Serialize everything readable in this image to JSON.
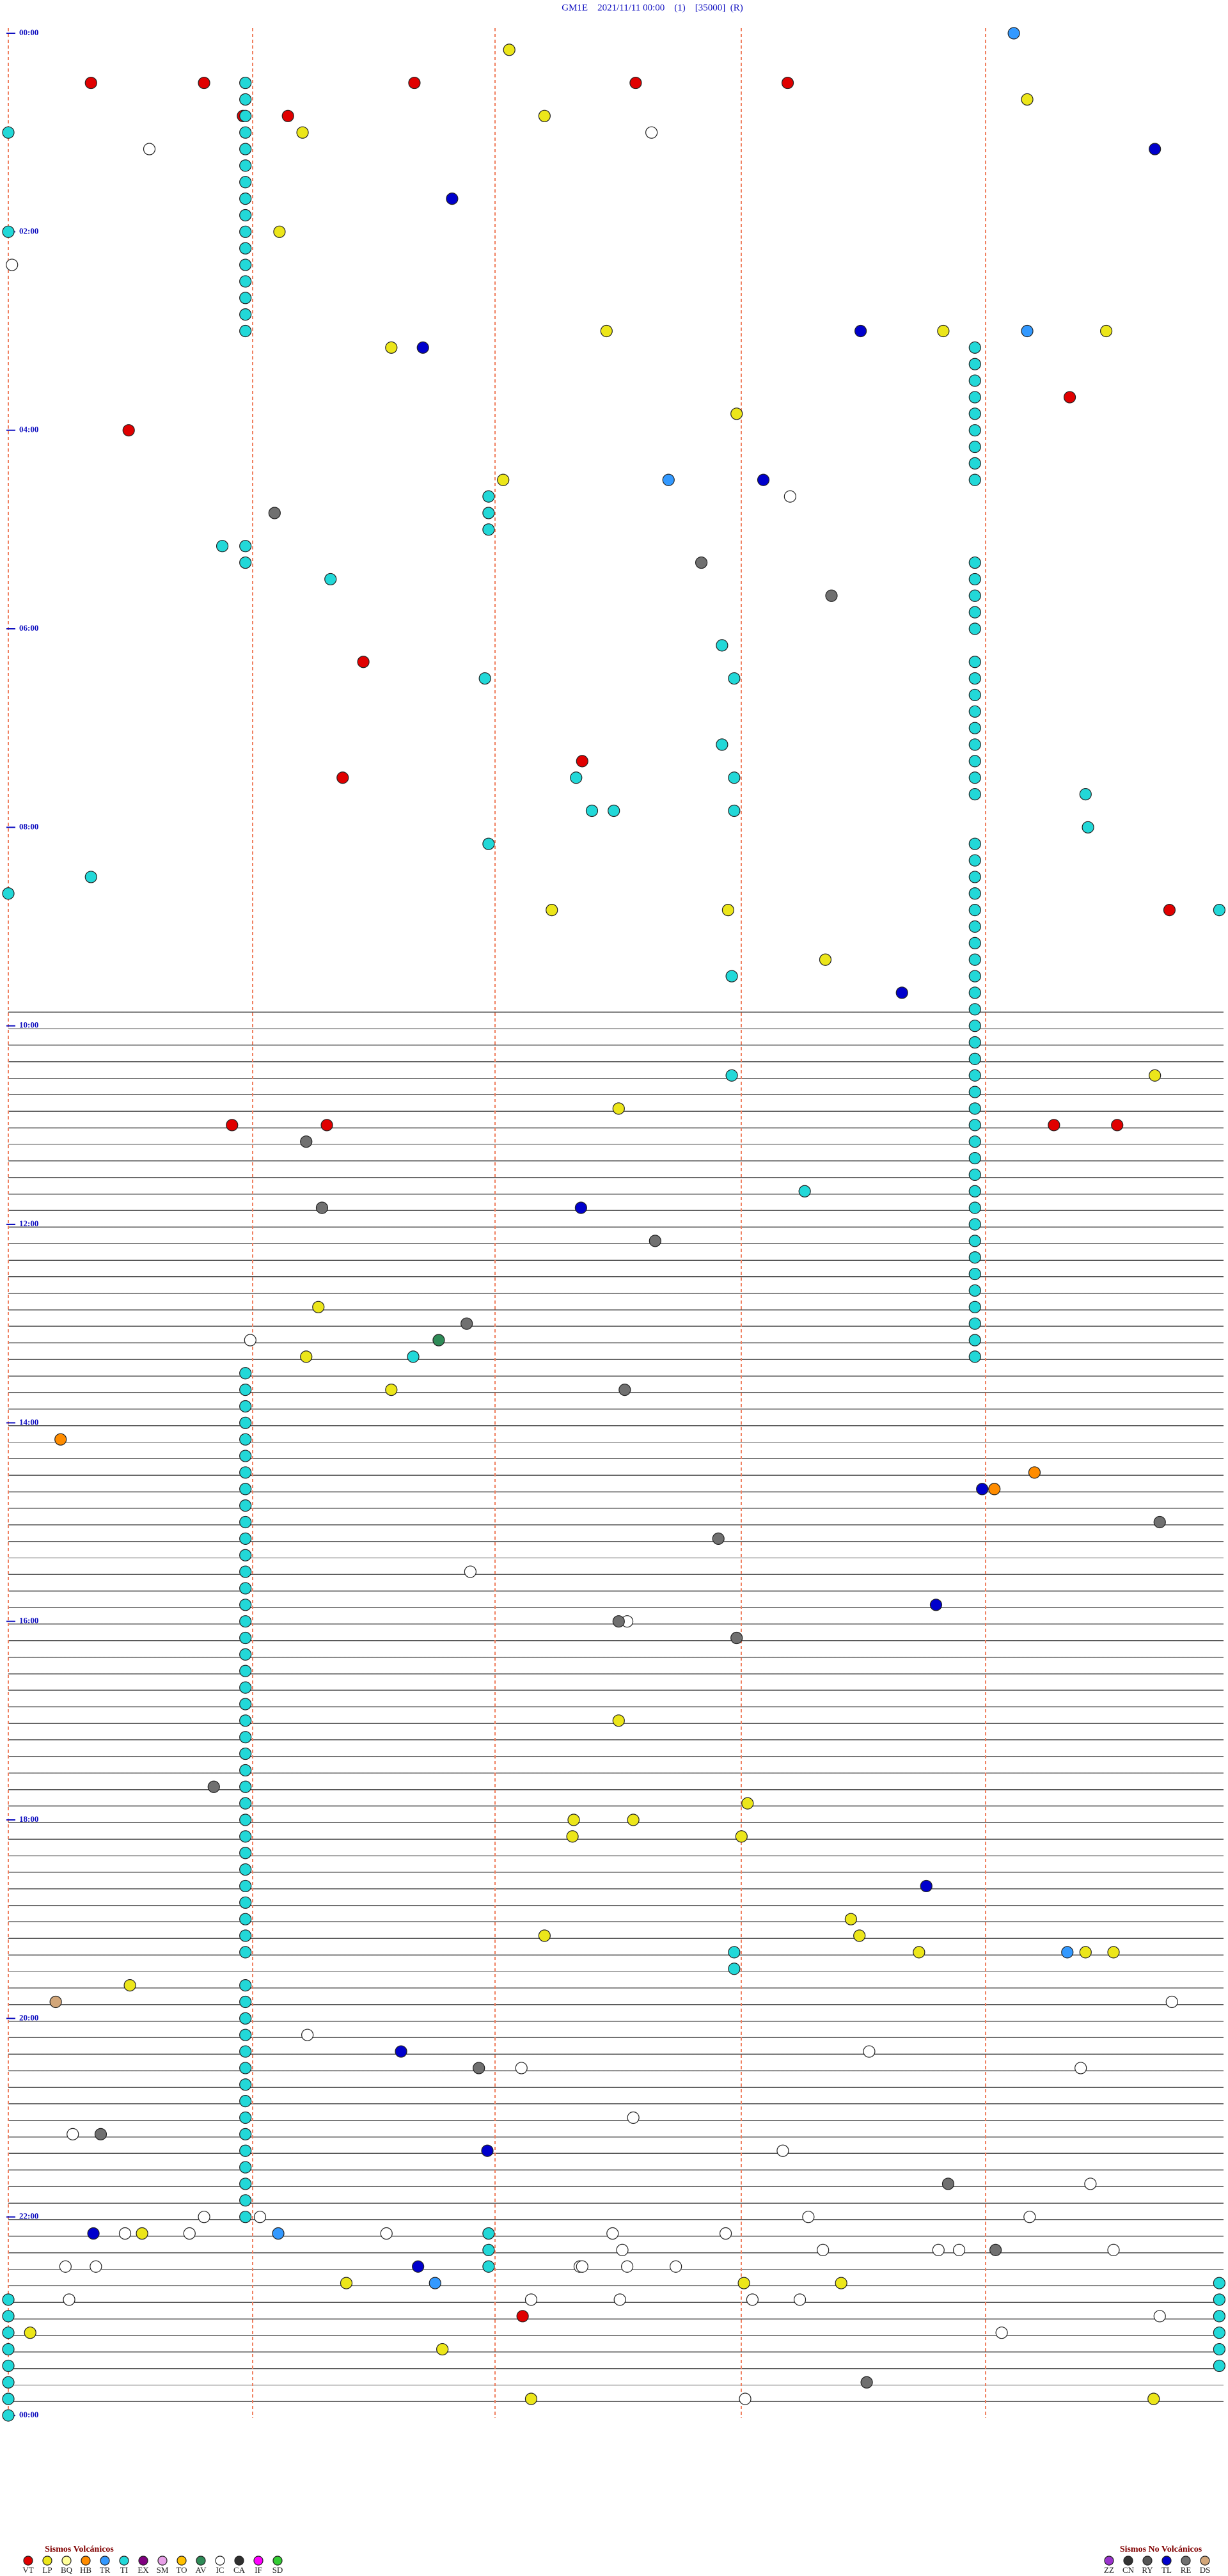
{
  "chart_data": {
    "type": "scatter",
    "title": "GM1E    2021/11/11 00:00    (1)    [35000]  (R)",
    "xlim": [
      0,
      10
    ],
    "ylim": [
      0,
      1440
    ],
    "yticks": [
      {
        "value": 0,
        "label": "00:00"
      },
      {
        "value": 120,
        "label": "02:00"
      },
      {
        "value": 240,
        "label": "04:00"
      },
      {
        "value": 360,
        "label": "06:00"
      },
      {
        "value": 480,
        "label": "08:00"
      },
      {
        "value": 600,
        "label": "10:00"
      },
      {
        "value": 720,
        "label": "12:00"
      },
      {
        "value": 840,
        "label": "14:00"
      },
      {
        "value": 960,
        "label": "16:00"
      },
      {
        "value": 1080,
        "label": "18:00"
      },
      {
        "value": 1200,
        "label": "20:00"
      },
      {
        "value": 1320,
        "label": "22:00"
      },
      {
        "value": 1440,
        "label": "00:00"
      }
    ],
    "series_groups": [
      {
        "title": "Sismos Volcánicos",
        "series": [
          {
            "name": "VT",
            "color": "#e00000",
            "x": [
              0.68,
              1.61,
              3.34,
              5.16,
              6.41,
              2.3,
              1.93,
              0.99,
              8.73,
              2.92,
              4.72,
              2.75,
              9.55,
              1.84,
              2.62,
              8.6,
              9.12,
              4.23
            ],
            "values": [
              30,
              30,
              30,
              30,
              30,
              50,
              50,
              240,
              220,
              380,
              440,
              450,
              530,
              660,
              660,
              660,
              660,
              1380
            ]
          },
          {
            "name": "LP",
            "color": "#ece61a",
            "x": [
              4.12,
              4.41,
              2.42,
              8.38,
              2.23,
              3.15,
              4.92,
              7.69,
              9.03,
              5.99,
              4.07,
              4.47,
              5.92,
              6.72,
              9.43,
              5.02,
              2.55,
              2.45,
              3.15,
              5.02,
              6.08,
              4.65,
              5.14,
              4.64,
              6.03,
              6.93,
              7.0,
              4.41,
              7.49,
              8.86,
              9.09,
              1.0,
              1.1,
              2.78,
              6.05,
              6.85,
              0.18,
              3.57,
              9.42,
              4.3
            ],
            "values": [
              10,
              50,
              60,
              40,
              120,
              190,
              180,
              180,
              180,
              230,
              270,
              530,
              530,
              560,
              630,
              650,
              770,
              800,
              820,
              1020,
              1070,
              1080,
              1080,
              1090,
              1090,
              1140,
              1150,
              1150,
              1160,
              1160,
              1160,
              1180,
              1330,
              1360,
              1360,
              1360,
              1390,
              1400,
              1430,
              1430
            ]
          },
          {
            "name": "BQ",
            "color": "#ffff99",
            "x": [],
            "values": []
          },
          {
            "name": "HB",
            "color": "#ff8c00",
            "x": [
              0.43,
              8.44,
              8.11
            ],
            "values": [
              850,
              870,
              880
            ]
          },
          {
            "name": "TR",
            "color": "#3399ff",
            "x": [
              8.27,
              5.43,
              8.38,
              8.71,
              2.22,
              3.51
            ],
            "values": [
              0,
              270,
              180,
              1160,
              1330,
              1360
            ]
          },
          {
            "name": "TI",
            "color": "#22d8d8",
            "x": [
              0,
              0,
              1.76,
              2.65,
              3.92,
              5.87,
              5.97,
              5.87,
              4.67,
              5.97,
              4.8,
              4.98,
              5.97,
              3.95,
              8.86,
              8.88,
              0.68,
              0,
              9.96,
              5.95,
              5.95,
              6.55,
              3.33,
              5.97,
              5.97,
              1.95,
              1.95,
              1.95,
              1.95,
              1.95,
              1.95,
              1.95,
              1.95,
              1.95,
              1.95,
              1.95,
              1.95,
              1.95,
              1.95,
              1.95,
              1.95,
              3.95,
              3.95,
              3.95,
              1.95,
              1.95,
              7.95,
              7.95,
              7.95,
              7.95,
              7.95,
              7.95,
              7.95,
              7.95,
              7.95,
              7.95,
              7.95,
              7.95,
              7.95,
              7.95,
              7.95,
              7.95,
              7.95,
              7.95,
              7.95,
              7.95,
              7.95,
              7.95,
              7.95,
              7.95,
              7.95,
              7.95,
              7.95,
              7.95,
              7.95,
              7.95,
              7.95,
              7.95,
              7.95,
              7.95,
              7.95,
              7.95,
              7.95,
              7.95,
              7.95,
              7.95,
              7.95,
              7.95,
              7.95,
              7.95,
              7.95,
              7.95,
              7.95,
              7.95,
              7.95,
              7.95,
              7.95,
              7.95,
              7.95,
              7.95,
              7.95,
              1.95,
              1.95,
              1.95,
              1.95,
              1.95,
              1.95,
              1.95,
              1.95,
              1.95,
              1.95,
              1.95,
              1.95,
              1.95,
              1.95,
              1.95,
              1.95,
              1.95,
              1.95,
              1.95,
              1.95,
              1.95,
              1.95,
              1.95,
              1.95,
              1.95,
              1.95,
              1.95,
              1.95,
              1.95,
              1.95,
              1.95,
              1.95,
              1.95,
              1.95,
              1.95,
              1.95,
              1.95,
              1.95,
              1.95,
              1.95,
              1.95,
              1.95,
              1.95,
              1.95,
              1.95,
              1.95,
              1.95,
              1.95,
              1.95,
              1.95,
              1.95,
              3.95,
              3.95,
              3.95,
              0,
              0,
              0,
              0,
              0,
              0,
              0,
              0,
              9.96,
              9.96,
              9.96,
              9.96,
              9.96,
              9.96
            ],
            "values": [
              60,
              120,
              310,
              330,
              390,
              370,
              390,
              430,
              450,
              450,
              470,
              470,
              470,
              490,
              460,
              480,
              510,
              520,
              530,
              570,
              630,
              700,
              800,
              1160,
              1170,
              30,
              40,
              50,
              60,
              70,
              80,
              90,
              100,
              110,
              120,
              130,
              140,
              150,
              160,
              170,
              180,
              280,
              290,
              300,
              310,
              320,
              190,
              200,
              210,
              220,
              230,
              240,
              250,
              260,
              270,
              320,
              330,
              340,
              350,
              360,
              380,
              390,
              400,
              410,
              420,
              430,
              440,
              450,
              460,
              490,
              500,
              510,
              520,
              530,
              540,
              550,
              560,
              570,
              580,
              590,
              600,
              610,
              620,
              630,
              640,
              650,
              660,
              670,
              680,
              690,
              700,
              710,
              720,
              730,
              740,
              750,
              760,
              770,
              780,
              790,
              800,
              810,
              820,
              830,
              840,
              850,
              860,
              870,
              880,
              890,
              900,
              910,
              920,
              930,
              940,
              950,
              960,
              970,
              980,
              990,
              1000,
              1010,
              1020,
              1030,
              1040,
              1050,
              1060,
              1070,
              1080,
              1090,
              1100,
              1110,
              1120,
              1130,
              1140,
              1150,
              1160,
              1180,
              1190,
              1200,
              1210,
              1220,
              1230,
              1240,
              1250,
              1260,
              1270,
              1280,
              1290,
              1300,
              1310,
              1320,
              1330,
              1340,
              1350,
              1370,
              1380,
              1390,
              1400,
              1410,
              1420,
              1430,
              1440,
              1360,
              1370,
              1380,
              1390,
              1400,
              1410
            ]
          },
          {
            "name": "EX",
            "color": "#800080",
            "x": [],
            "values": []
          },
          {
            "name": "SM",
            "color": "#e8a0e8",
            "x": [],
            "values": []
          },
          {
            "name": "TO",
            "color": "#ffc000",
            "x": [],
            "values": []
          },
          {
            "name": "AV",
            "color": "#2e8b57",
            "x": [
              3.54
            ],
            "values": [
              790
            ]
          },
          {
            "name": "IC",
            "color": "#ffffff",
            "x": [
              1.16,
              5.29,
              6.43,
              0.03,
              1.99,
              3.8,
              5.09,
              9.57,
              2.46,
              7.08,
              4.22,
              8.82,
              0.53,
              5.14,
              6.37,
              8.9,
              1.61,
              2.07,
              6.58,
              8.4,
              4.97,
              5.9,
              0.96,
              1.49,
              3.11,
              5.05,
              6.7,
              7.82,
              7.65,
              9.09,
              0.47,
              4.7,
              5.09,
              0.72,
              4.72,
              5.49,
              4.3,
              5.03,
              6.12,
              0.5,
              6.51,
              9.47,
              8.17,
              6.06
            ],
            "values": [
              70,
              60,
              280,
              140,
              790,
              930,
              960,
              1190,
              1210,
              1220,
              1230,
              1230,
              1270,
              1260,
              1280,
              1300,
              1320,
              1320,
              1320,
              1320,
              1330,
              1330,
              1330,
              1330,
              1330,
              1340,
              1340,
              1340,
              1340,
              1340,
              1350,
              1350,
              1350,
              1350,
              1350,
              1350,
              1370,
              1370,
              1370,
              1370,
              1370,
              1380,
              1390,
              1430
            ]
          },
          {
            "name": "CA",
            "color": "#303030",
            "x": [],
            "values": []
          },
          {
            "name": "IF",
            "color": "#ff00ff",
            "x": [],
            "values": []
          },
          {
            "name": "SD",
            "color": "#33cc33",
            "x": [],
            "values": []
          }
        ]
      },
      {
        "title": "Sismos No Volcánicos",
        "series": [
          {
            "name": "ZZ",
            "color": "#9933cc",
            "x": [],
            "values": []
          },
          {
            "name": "CN",
            "color": "#333333",
            "x": [],
            "values": []
          },
          {
            "name": "RY",
            "color": "#555555",
            "x": [],
            "values": []
          },
          {
            "name": "TL",
            "color": "#0000cc",
            "x": [
              9.43,
              3.65,
              3.41,
              7.01,
              6.21,
              7.35,
              4.71,
              8.01,
              7.63,
              7.55,
              3.23,
              3.94,
              0.7,
              3.37
            ],
            "values": [
              70,
              100,
              190,
              180,
              270,
              580,
              710,
              880,
              950,
              1120,
              1220,
              1280,
              1330,
              1350
            ]
          },
          {
            "name": "RE",
            "color": "#707070",
            "x": [
              2.19,
              5.7,
              6.77,
              2.45,
              2.58,
              5.32,
              3.77,
              5.07,
              5.84,
              9.47,
              5.02,
              5.99,
              1.69,
              3.87,
              0.76,
              7.73,
              8.12,
              7.06
            ],
            "values": [
              290,
              320,
              340,
              670,
              710,
              730,
              780,
              820,
              910,
              900,
              960,
              970,
              1060,
              1230,
              1270,
              1300,
              1340,
              1420
            ]
          },
          {
            "name": "DS",
            "color": "#d2a679",
            "x": [
              0.39
            ],
            "values": [
              1190
            ]
          }
        ]
      }
    ]
  }
}
